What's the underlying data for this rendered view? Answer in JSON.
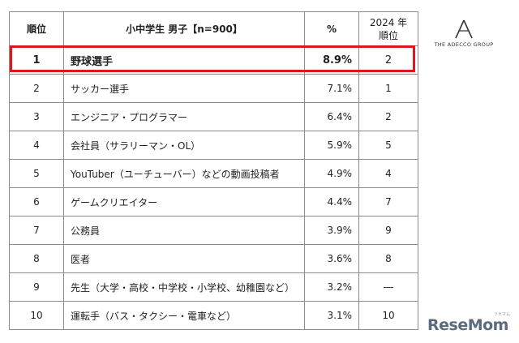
{
  "table": {
    "headers": {
      "rank": "順位",
      "occupation": "小中学生 男子【n=900】",
      "percent": "%",
      "prev_year_line1": "2024 年",
      "prev_year_line2": "順位"
    },
    "rows": [
      {
        "rank": "1",
        "occupation": "野球選手",
        "percent": "8.9%",
        "prev": "2",
        "highlighted": true
      },
      {
        "rank": "2",
        "occupation": "サッカー選手",
        "percent": "7.1%",
        "prev": "1"
      },
      {
        "rank": "3",
        "occupation": "エンジニア・プログラマー",
        "percent": "6.4%",
        "prev": "2"
      },
      {
        "rank": "4",
        "occupation": "会社員（サラリーマン・OL）",
        "percent": "5.9%",
        "prev": "5"
      },
      {
        "rank": "5",
        "occupation": "YouTuber（ユーチューバー）などの動画投稿者",
        "percent": "4.9%",
        "prev": "4"
      },
      {
        "rank": "6",
        "occupation": "ゲームクリエイター",
        "percent": "4.4%",
        "prev": "7"
      },
      {
        "rank": "7",
        "occupation": "公務員",
        "percent": "3.9%",
        "prev": "9"
      },
      {
        "rank": "8",
        "occupation": "医者",
        "percent": "3.6%",
        "prev": "8"
      },
      {
        "rank": "9",
        "occupation": "先生（大学・高校・中学校・小学校、幼稚園など）",
        "percent": "3.2%",
        "prev": "―"
      },
      {
        "rank": "10",
        "occupation": "運転手（バス・タクシー・電車など）",
        "percent": "3.1%",
        "prev": "10"
      }
    ]
  },
  "logos": {
    "adecco_text": "THE ADECCO GROUP",
    "resemom_text": "ReseMom",
    "resemom_ruby": "リセマム"
  },
  "colors": {
    "highlight_border": "#e0161e",
    "table_border": "#8c8c8c",
    "resemom": "#5b6b7c"
  }
}
